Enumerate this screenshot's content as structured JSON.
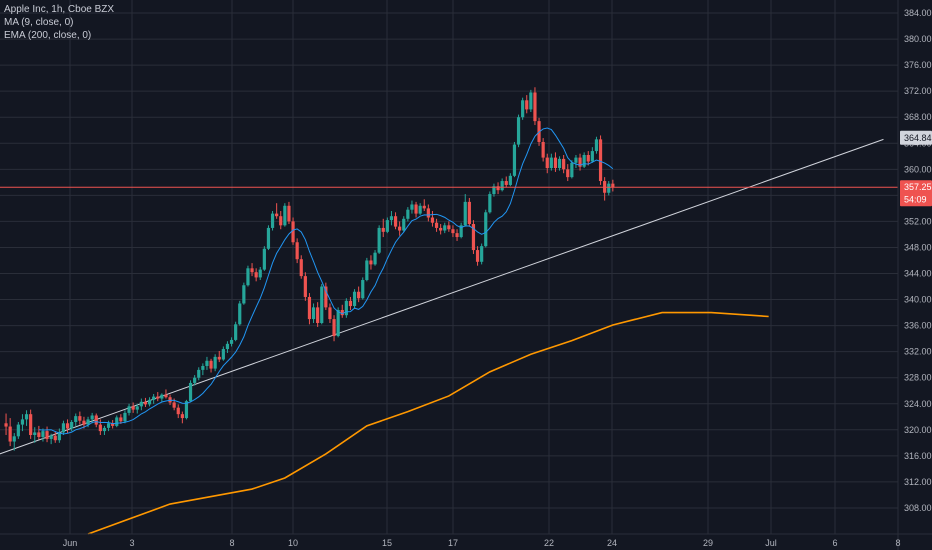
{
  "legend": {
    "symbol": "Apple Inc, 1h, Cboe BZX",
    "ma": "MA (9, close, 0)",
    "ema": "EMA (200, close, 0)"
  },
  "colors": {
    "background": "#131722",
    "grid": "#2a2e39",
    "up": "#26a69a",
    "down": "#ef5350",
    "ma": "#2196f3",
    "ema": "#ff9800",
    "trendline": "#d1d4dc",
    "hline": "#ef5350"
  },
  "chart_data": {
    "type": "candlestick",
    "title": "Apple Inc, 1h, Cboe BZX",
    "y_axis_side": "right",
    "ylim": [
      304,
      386
    ],
    "y_ticks": [
      308,
      312,
      316,
      320,
      324,
      328,
      332,
      336,
      340,
      344,
      348,
      352,
      356,
      360,
      364,
      368,
      372,
      376,
      380,
      384
    ],
    "x_ticks": [
      "Jun",
      "3",
      "8",
      "10",
      "15",
      "17",
      "22",
      "24",
      "29",
      "Jul",
      "6",
      "8"
    ],
    "price_tags": [
      {
        "label": "364.84",
        "value": 364.84,
        "style": "gray"
      },
      {
        "label": "357.25",
        "value": 357.25,
        "style": "red"
      },
      {
        "label": "54:09",
        "value": 355.4,
        "style": "red"
      }
    ],
    "horizontal_line": 357.25,
    "trendline": [
      {
        "bar": -6,
        "value": 315.3
      },
      {
        "bar": 214,
        "value": 364.6
      }
    ],
    "series": [
      {
        "name": "MA (9, close, 0)",
        "kind": "ma",
        "period": 9
      },
      {
        "name": "EMA (200, close, 0)",
        "kind": "ema",
        "points": [
          [
            20,
            304.0
          ],
          [
            40,
            308.6
          ],
          [
            60,
            310.9
          ],
          [
            68,
            312.6
          ],
          [
            78,
            316.3
          ],
          [
            88,
            320.6
          ],
          [
            98,
            322.8
          ],
          [
            108,
            325.2
          ],
          [
            118,
            328.9
          ],
          [
            128,
            331.6
          ],
          [
            138,
            333.7
          ],
          [
            148,
            336.1
          ],
          [
            160,
            338.0
          ],
          [
            172,
            338.0
          ],
          [
            186,
            337.4
          ]
        ]
      }
    ],
    "candles": [
      [
        321.0,
        322.5,
        319.2,
        320.5
      ],
      [
        320.5,
        321.8,
        317.5,
        318.2
      ],
      [
        318.2,
        319.5,
        316.8,
        319.0
      ],
      [
        319.0,
        321.2,
        318.6,
        320.8
      ],
      [
        320.8,
        322.4,
        319.8,
        321.6
      ],
      [
        321.6,
        323.0,
        320.6,
        322.4
      ],
      [
        322.4,
        323.1,
        318.6,
        319.2
      ],
      [
        319.2,
        320.4,
        318.0,
        319.6
      ],
      [
        319.6,
        320.6,
        318.5,
        318.9
      ],
      [
        318.9,
        320.2,
        318.2,
        319.8
      ],
      [
        319.8,
        320.5,
        318.1,
        318.6
      ],
      [
        318.6,
        319.4,
        317.8,
        319.1
      ],
      [
        319.1,
        319.8,
        318.0,
        318.4
      ],
      [
        318.4,
        320.2,
        318.0,
        319.6
      ],
      [
        319.6,
        321.4,
        319.2,
        321.0
      ],
      [
        321.0,
        321.6,
        319.5,
        320.2
      ],
      [
        320.2,
        321.5,
        319.8,
        321.2
      ],
      [
        321.2,
        322.5,
        320.6,
        322.1
      ],
      [
        322.1,
        322.8,
        320.8,
        321.4
      ],
      [
        321.4,
        322.0,
        320.2,
        320.8
      ],
      [
        320.8,
        322.0,
        320.4,
        321.6
      ],
      [
        321.6,
        322.6,
        321.0,
        322.2
      ],
      [
        322.2,
        322.5,
        320.4,
        320.8
      ],
      [
        320.8,
        321.6,
        319.2,
        319.8
      ],
      [
        319.8,
        320.6,
        319.2,
        320.3
      ],
      [
        320.3,
        321.4,
        319.8,
        321.0
      ],
      [
        321.0,
        321.5,
        320.2,
        320.6
      ],
      [
        320.6,
        322.2,
        320.4,
        321.9
      ],
      [
        321.9,
        322.4,
        320.9,
        321.3
      ],
      [
        321.3,
        323.0,
        321.0,
        322.6
      ],
      [
        322.6,
        324.0,
        322.2,
        323.6
      ],
      [
        323.6,
        324.2,
        322.6,
        323.1
      ],
      [
        323.1,
        324.0,
        322.5,
        323.6
      ],
      [
        323.6,
        324.8,
        323.0,
        324.3
      ],
      [
        324.3,
        324.9,
        323.5,
        323.9
      ],
      [
        323.9,
        325.0,
        323.6,
        324.6
      ],
      [
        324.6,
        325.5,
        324.0,
        325.1
      ],
      [
        325.1,
        325.8,
        324.4,
        324.8
      ],
      [
        324.8,
        325.6,
        324.3,
        325.4
      ],
      [
        325.4,
        326.2,
        324.8,
        325.0
      ],
      [
        325.0,
        325.4,
        323.8,
        324.2
      ],
      [
        324.2,
        324.8,
        323.0,
        323.4
      ],
      [
        323.4,
        323.9,
        321.8,
        322.4
      ],
      [
        322.4,
        322.8,
        321.0,
        321.8
      ],
      [
        321.8,
        324.6,
        321.6,
        324.4
      ],
      [
        324.4,
        327.6,
        324.2,
        327.2
      ],
      [
        327.2,
        328.4,
        326.8,
        328.0
      ],
      [
        328.0,
        329.6,
        327.6,
        329.2
      ],
      [
        329.2,
        330.2,
        328.4,
        329.8
      ],
      [
        329.8,
        331.2,
        329.2,
        330.6
      ],
      [
        330.6,
        330.9,
        328.8,
        329.4
      ],
      [
        329.4,
        331.6,
        329.0,
        331.2
      ],
      [
        331.2,
        332.1,
        330.4,
        330.8
      ],
      [
        330.8,
        332.8,
        330.6,
        332.4
      ],
      [
        332.4,
        333.6,
        331.8,
        333.2
      ],
      [
        333.2,
        334.2,
        332.8,
        333.8
      ],
      [
        333.8,
        336.6,
        333.6,
        336.2
      ],
      [
        336.2,
        339.8,
        336.0,
        339.4
      ],
      [
        339.4,
        342.6,
        339.2,
        342.2
      ],
      [
        342.2,
        345.2,
        342.0,
        344.8
      ],
      [
        344.8,
        345.6,
        343.6,
        344.2
      ],
      [
        344.2,
        344.8,
        342.8,
        343.4
      ],
      [
        343.4,
        345.0,
        343.0,
        344.6
      ],
      [
        344.6,
        348.2,
        344.4,
        347.8
      ],
      [
        347.8,
        351.4,
        347.6,
        351.0
      ],
      [
        351.0,
        353.6,
        350.6,
        353.2
      ],
      [
        353.2,
        354.8,
        352.4,
        352.8
      ],
      [
        352.8,
        353.6,
        350.8,
        351.4
      ],
      [
        351.4,
        354.8,
        351.2,
        354.4
      ],
      [
        354.4,
        355.0,
        351.6,
        352.0
      ],
      [
        352.0,
        352.6,
        348.4,
        348.8
      ],
      [
        348.8,
        349.4,
        345.6,
        346.2
      ],
      [
        346.2,
        346.8,
        343.2,
        343.6
      ],
      [
        343.6,
        344.2,
        339.8,
        340.4
      ],
      [
        340.4,
        341.0,
        336.2,
        337.0
      ],
      [
        337.0,
        339.4,
        336.4,
        338.8
      ],
      [
        338.8,
        339.6,
        335.8,
        336.4
      ],
      [
        336.4,
        342.4,
        336.2,
        342.0
      ],
      [
        342.0,
        342.6,
        338.4,
        338.8
      ],
      [
        338.8,
        339.4,
        336.4,
        337.0
      ],
      [
        337.0,
        337.6,
        333.6,
        334.4
      ],
      [
        334.4,
        338.8,
        334.2,
        338.4
      ],
      [
        338.4,
        339.2,
        337.2,
        337.6
      ],
      [
        337.6,
        340.2,
        337.2,
        339.8
      ],
      [
        339.8,
        340.4,
        338.4,
        339.0
      ],
      [
        339.0,
        341.6,
        338.6,
        341.2
      ],
      [
        341.2,
        342.0,
        339.6,
        340.2
      ],
      [
        340.2,
        343.4,
        340.0,
        343.0
      ],
      [
        343.0,
        346.4,
        342.8,
        346.0
      ],
      [
        346.0,
        346.8,
        344.6,
        345.4
      ],
      [
        345.4,
        347.6,
        345.2,
        347.2
      ],
      [
        347.2,
        351.4,
        347.0,
        351.0
      ],
      [
        351.0,
        352.4,
        349.6,
        350.4
      ],
      [
        350.4,
        352.6,
        350.2,
        352.2
      ],
      [
        352.2,
        353.6,
        351.4,
        352.8
      ],
      [
        352.8,
        353.4,
        350.8,
        351.2
      ],
      [
        351.2,
        352.0,
        349.8,
        350.6
      ],
      [
        350.6,
        352.8,
        350.4,
        352.4
      ],
      [
        352.4,
        354.2,
        352.0,
        353.8
      ],
      [
        353.8,
        355.2,
        353.2,
        354.6
      ],
      [
        354.6,
        355.0,
        352.6,
        353.2
      ],
      [
        353.2,
        354.8,
        353.0,
        354.4
      ],
      [
        354.4,
        355.4,
        353.6,
        354.0
      ],
      [
        354.0,
        354.6,
        352.0,
        352.6
      ],
      [
        352.6,
        353.6,
        351.2,
        351.8
      ],
      [
        351.8,
        352.4,
        350.4,
        351.0
      ],
      [
        351.0,
        351.6,
        350.0,
        350.6
      ],
      [
        350.6,
        351.8,
        350.2,
        351.4
      ],
      [
        351.4,
        352.0,
        350.4,
        350.8
      ],
      [
        350.8,
        351.4,
        349.6,
        350.2
      ],
      [
        350.2,
        350.8,
        349.0,
        349.6
      ],
      [
        349.6,
        351.8,
        349.4,
        351.4
      ],
      [
        351.4,
        356.2,
        351.2,
        355.0
      ],
      [
        355.0,
        355.6,
        351.2,
        351.6
      ],
      [
        351.6,
        352.2,
        347.0,
        347.6
      ],
      [
        347.6,
        348.2,
        345.2,
        345.8
      ],
      [
        345.8,
        348.6,
        345.4,
        348.2
      ],
      [
        348.2,
        353.8,
        348.0,
        353.4
      ],
      [
        353.4,
        356.6,
        353.2,
        356.2
      ],
      [
        356.2,
        357.8,
        355.8,
        357.4
      ],
      [
        357.4,
        358.0,
        356.2,
        356.8
      ],
      [
        356.8,
        358.6,
        356.6,
        358.2
      ],
      [
        358.2,
        358.9,
        357.2,
        357.6
      ],
      [
        357.6,
        359.4,
        357.4,
        359.0
      ],
      [
        359.0,
        364.2,
        358.8,
        363.8
      ],
      [
        363.8,
        368.4,
        363.4,
        368.0
      ],
      [
        368.0,
        371.0,
        367.6,
        370.6
      ],
      [
        370.6,
        371.4,
        368.6,
        369.2
      ],
      [
        369.2,
        372.2,
        368.8,
        371.8
      ],
      [
        371.8,
        372.6,
        366.8,
        367.4
      ],
      [
        367.4,
        367.9,
        363.6,
        364.2
      ],
      [
        364.2,
        364.8,
        361.2,
        361.8
      ],
      [
        361.8,
        362.4,
        359.4,
        360.2
      ],
      [
        360.2,
        362.4,
        359.8,
        361.8
      ],
      [
        361.8,
        362.6,
        359.6,
        360.2
      ],
      [
        360.2,
        362.0,
        359.8,
        361.6
      ],
      [
        361.6,
        362.2,
        359.4,
        360.0
      ],
      [
        360.0,
        360.8,
        358.2,
        358.8
      ],
      [
        358.8,
        361.4,
        358.6,
        361.0
      ],
      [
        361.0,
        362.2,
        360.2,
        361.8
      ],
      [
        361.8,
        362.4,
        359.8,
        360.4
      ],
      [
        360.4,
        362.6,
        360.2,
        362.2
      ],
      [
        362.2,
        362.8,
        360.6,
        361.2
      ],
      [
        361.2,
        363.4,
        361.0,
        362.8
      ],
      [
        362.8,
        365.0,
        362.4,
        364.6
      ],
      [
        364.6,
        365.2,
        357.6,
        358.2
      ],
      [
        358.2,
        358.8,
        355.2,
        356.4
      ],
      [
        356.4,
        358.2,
        356.0,
        357.8
      ],
      [
        357.8,
        358.4,
        356.6,
        357.2
      ]
    ]
  }
}
